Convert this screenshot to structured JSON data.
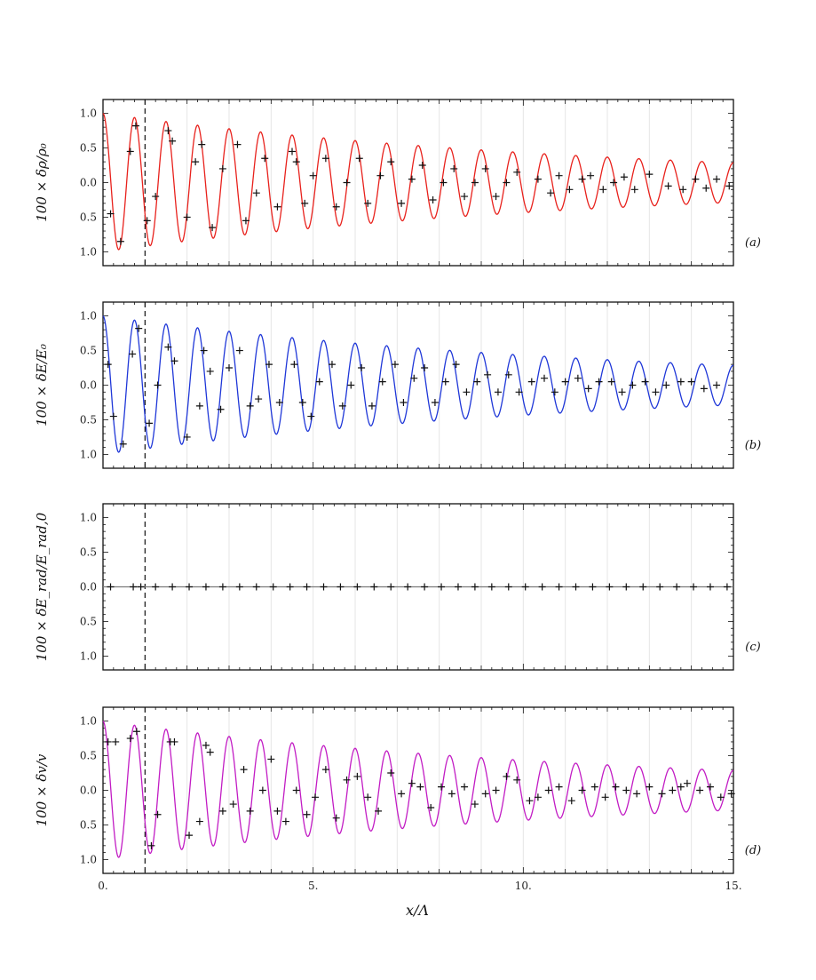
{
  "chart_data": {
    "type": "line",
    "x_axis": {
      "label": "x/Λ",
      "range": [
        0,
        15
      ],
      "ticks": [
        0,
        5,
        10,
        15
      ],
      "tick_labels": [
        "0.",
        "5.",
        "10.",
        "15."
      ]
    },
    "y_ticks": [
      1.0,
      0.5,
      0.0,
      -0.5,
      -1.0
    ],
    "y_tick_labels": [
      "1.0",
      "0.5",
      "0.0",
      "0.5",
      "1.0"
    ],
    "y_range": [
      -1.2,
      1.2
    ],
    "vertical_marker_x": 1.0,
    "panels": [
      {
        "tag": "(a)",
        "ylabel": "100 × δρ/ρ₀",
        "color": "#e8211c",
        "model": {
          "amplitude": 1.0,
          "decay_length": 12.0,
          "wavelength": 0.75,
          "phase": 0.0
        },
        "markers": [
          [
            0.18,
            -0.45
          ],
          [
            0.42,
            -0.85
          ],
          [
            0.65,
            0.45
          ],
          [
            0.78,
            0.82
          ],
          [
            1.05,
            -0.55
          ],
          [
            1.25,
            -0.2
          ],
          [
            1.55,
            0.75
          ],
          [
            1.65,
            0.6
          ],
          [
            2.0,
            -0.5
          ],
          [
            2.2,
            0.3
          ],
          [
            2.35,
            0.55
          ],
          [
            2.6,
            -0.65
          ],
          [
            2.85,
            0.2
          ],
          [
            3.2,
            0.55
          ],
          [
            3.4,
            -0.55
          ],
          [
            3.65,
            -0.15
          ],
          [
            3.85,
            0.35
          ],
          [
            4.15,
            -0.35
          ],
          [
            4.5,
            0.45
          ],
          [
            4.6,
            0.3
          ],
          [
            4.8,
            -0.3
          ],
          [
            5.0,
            0.1
          ],
          [
            5.3,
            0.35
          ],
          [
            5.55,
            -0.35
          ],
          [
            5.8,
            0.0
          ],
          [
            6.1,
            0.35
          ],
          [
            6.3,
            -0.3
          ],
          [
            6.6,
            0.1
          ],
          [
            6.85,
            0.3
          ],
          [
            7.1,
            -0.3
          ],
          [
            7.35,
            0.05
          ],
          [
            7.6,
            0.25
          ],
          [
            7.85,
            -0.25
          ],
          [
            8.1,
            0.0
          ],
          [
            8.35,
            0.2
          ],
          [
            8.6,
            -0.2
          ],
          [
            8.85,
            0.0
          ],
          [
            9.1,
            0.2
          ],
          [
            9.35,
            -0.2
          ],
          [
            9.6,
            0.0
          ],
          [
            9.85,
            0.15
          ],
          [
            10.35,
            0.05
          ],
          [
            10.65,
            -0.15
          ],
          [
            10.85,
            0.1
          ],
          [
            11.1,
            -0.1
          ],
          [
            11.4,
            0.05
          ],
          [
            11.6,
            0.1
          ],
          [
            11.9,
            -0.1
          ],
          [
            12.15,
            0.0
          ],
          [
            12.4,
            0.08
          ],
          [
            12.65,
            -0.1
          ],
          [
            13.0,
            0.12
          ],
          [
            13.45,
            -0.05
          ],
          [
            13.8,
            -0.1
          ],
          [
            14.1,
            0.05
          ],
          [
            14.35,
            -0.08
          ],
          [
            14.6,
            0.05
          ],
          [
            14.9,
            -0.05
          ]
        ]
      },
      {
        "tag": "(b)",
        "ylabel": "100 × δE/E₀",
        "color": "#1f37d8",
        "model": {
          "amplitude": 1.0,
          "decay_length": 12.0,
          "wavelength": 0.75,
          "phase": 0.0
        },
        "markers": [
          [
            0.12,
            0.3
          ],
          [
            0.25,
            -0.45
          ],
          [
            0.48,
            -0.85
          ],
          [
            0.7,
            0.45
          ],
          [
            0.85,
            0.82
          ],
          [
            1.1,
            -0.55
          ],
          [
            1.3,
            0.0
          ],
          [
            1.55,
            0.55
          ],
          [
            1.7,
            0.35
          ],
          [
            2.0,
            -0.75
          ],
          [
            2.3,
            -0.3
          ],
          [
            2.4,
            0.5
          ],
          [
            2.55,
            0.2
          ],
          [
            2.8,
            -0.35
          ],
          [
            3.0,
            0.25
          ],
          [
            3.25,
            0.5
          ],
          [
            3.5,
            -0.3
          ],
          [
            3.7,
            -0.2
          ],
          [
            3.95,
            0.3
          ],
          [
            4.2,
            -0.25
          ],
          [
            4.55,
            0.3
          ],
          [
            4.75,
            -0.25
          ],
          [
            4.95,
            -0.45
          ],
          [
            5.15,
            0.05
          ],
          [
            5.45,
            0.3
          ],
          [
            5.7,
            -0.3
          ],
          [
            5.9,
            0.0
          ],
          [
            6.15,
            0.25
          ],
          [
            6.4,
            -0.3
          ],
          [
            6.65,
            0.05
          ],
          [
            6.95,
            0.3
          ],
          [
            7.15,
            -0.25
          ],
          [
            7.4,
            0.1
          ],
          [
            7.65,
            0.25
          ],
          [
            7.9,
            -0.25
          ],
          [
            8.15,
            0.05
          ],
          [
            8.4,
            0.3
          ],
          [
            8.65,
            -0.1
          ],
          [
            8.9,
            0.05
          ],
          [
            9.15,
            0.15
          ],
          [
            9.4,
            -0.1
          ],
          [
            9.65,
            0.15
          ],
          [
            9.9,
            -0.1
          ],
          [
            10.2,
            0.05
          ],
          [
            10.5,
            0.1
          ],
          [
            10.75,
            -0.1
          ],
          [
            11.0,
            0.05
          ],
          [
            11.3,
            0.1
          ],
          [
            11.55,
            -0.05
          ],
          [
            11.8,
            0.05
          ],
          [
            12.1,
            0.05
          ],
          [
            12.35,
            -0.1
          ],
          [
            12.6,
            0.0
          ],
          [
            12.9,
            0.05
          ],
          [
            13.15,
            -0.1
          ],
          [
            13.4,
            0.0
          ],
          [
            13.75,
            0.05
          ],
          [
            14.0,
            0.05
          ],
          [
            14.3,
            -0.05
          ],
          [
            14.6,
            0.0
          ]
        ]
      },
      {
        "tag": "(c)",
        "ylabel": "100 × δE_rad/E_rad,0",
        "color": "#7a7a7a",
        "model": {
          "amplitude": 0.0,
          "decay_length": 12.0,
          "wavelength": 0.75,
          "phase": 0.0
        },
        "markers": [
          [
            0.18,
            0.0
          ],
          [
            0.72,
            0.0
          ],
          [
            0.9,
            0.0
          ],
          [
            1.25,
            0.0
          ],
          [
            1.65,
            0.0
          ],
          [
            2.05,
            0.0
          ],
          [
            2.45,
            0.0
          ],
          [
            2.85,
            0.0
          ],
          [
            3.25,
            0.0
          ],
          [
            3.65,
            0.0
          ],
          [
            4.05,
            0.0
          ],
          [
            4.45,
            0.0
          ],
          [
            4.85,
            0.0
          ],
          [
            5.25,
            0.0
          ],
          [
            5.65,
            0.0
          ],
          [
            6.05,
            0.0
          ],
          [
            6.45,
            0.0
          ],
          [
            6.85,
            0.0
          ],
          [
            7.25,
            0.0
          ],
          [
            7.65,
            0.0
          ],
          [
            8.05,
            0.0
          ],
          [
            8.45,
            0.0
          ],
          [
            8.85,
            0.0
          ],
          [
            9.25,
            0.0
          ],
          [
            9.65,
            0.0
          ],
          [
            10.05,
            0.0
          ],
          [
            10.45,
            0.0
          ],
          [
            10.85,
            0.0
          ],
          [
            11.25,
            0.0
          ],
          [
            11.65,
            0.0
          ],
          [
            12.05,
            0.0
          ],
          [
            12.45,
            0.0
          ],
          [
            12.85,
            0.0
          ],
          [
            13.25,
            0.0
          ],
          [
            13.65,
            0.0
          ],
          [
            14.05,
            0.0
          ],
          [
            14.45,
            0.0
          ],
          [
            14.85,
            0.0
          ]
        ]
      },
      {
        "tag": "(d)",
        "ylabel": "100 × δv/v",
        "color": "#c21cc4",
        "model": {
          "amplitude": 1.0,
          "decay_length": 12.0,
          "wavelength": 0.75,
          "phase": 0.0
        },
        "markers": [
          [
            0.12,
            0.7
          ],
          [
            0.3,
            0.7
          ],
          [
            0.65,
            0.75
          ],
          [
            0.8,
            0.85
          ],
          [
            1.15,
            -0.8
          ],
          [
            1.3,
            -0.35
          ],
          [
            1.6,
            0.7
          ],
          [
            1.7,
            0.7
          ],
          [
            2.05,
            -0.65
          ],
          [
            2.3,
            -0.45
          ],
          [
            2.45,
            0.65
          ],
          [
            2.55,
            0.55
          ],
          [
            2.85,
            -0.3
          ],
          [
            3.1,
            -0.2
          ],
          [
            3.35,
            0.3
          ],
          [
            3.5,
            -0.3
          ],
          [
            3.8,
            0.0
          ],
          [
            4.0,
            0.45
          ],
          [
            4.15,
            -0.3
          ],
          [
            4.35,
            -0.45
          ],
          [
            4.6,
            0.0
          ],
          [
            4.85,
            -0.35
          ],
          [
            5.05,
            -0.1
          ],
          [
            5.3,
            0.3
          ],
          [
            5.55,
            -0.4
          ],
          [
            5.8,
            0.15
          ],
          [
            6.05,
            0.2
          ],
          [
            6.3,
            -0.1
          ],
          [
            6.55,
            -0.3
          ],
          [
            6.85,
            0.25
          ],
          [
            7.1,
            -0.05
          ],
          [
            7.35,
            0.1
          ],
          [
            7.55,
            0.05
          ],
          [
            7.8,
            -0.25
          ],
          [
            8.05,
            0.05
          ],
          [
            8.3,
            -0.05
          ],
          [
            8.6,
            0.05
          ],
          [
            8.85,
            -0.2
          ],
          [
            9.1,
            -0.05
          ],
          [
            9.35,
            0.0
          ],
          [
            9.6,
            0.2
          ],
          [
            9.85,
            0.15
          ],
          [
            10.15,
            -0.15
          ],
          [
            10.35,
            -0.1
          ],
          [
            10.6,
            0.0
          ],
          [
            10.85,
            0.05
          ],
          [
            11.15,
            -0.15
          ],
          [
            11.4,
            0.0
          ],
          [
            11.7,
            0.05
          ],
          [
            11.95,
            -0.1
          ],
          [
            12.2,
            0.05
          ],
          [
            12.45,
            0.0
          ],
          [
            12.7,
            -0.05
          ],
          [
            13.0,
            0.05
          ],
          [
            13.3,
            -0.05
          ],
          [
            13.55,
            0.0
          ],
          [
            13.75,
            0.05
          ],
          [
            13.9,
            0.1
          ],
          [
            14.2,
            0.0
          ],
          [
            14.45,
            0.05
          ],
          [
            14.7,
            -0.1
          ],
          [
            14.95,
            -0.05
          ]
        ]
      }
    ]
  }
}
